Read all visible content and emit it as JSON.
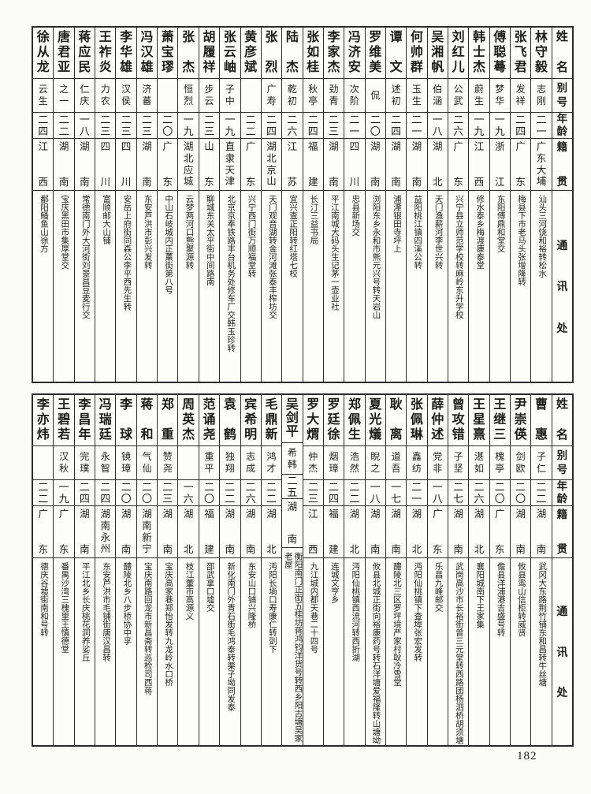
{
  "page_number": "182",
  "colors": {
    "ink": "#1c1c1c",
    "paper": "#fbfbf8",
    "border": "#2b2b2b"
  },
  "header_labels": {
    "name": "姓名",
    "alias": "别号",
    "age": "年龄",
    "native_place": "籍贯",
    "address": "通讯处"
  },
  "tables": [
    {
      "people": [
        {
          "name": "林守毅",
          "alias": "志刚",
          "age": "二一",
          "native": "广东大埔",
          "address": "汕头三河饶和裕转松水"
        },
        {
          "name": "张飞君",
          "alias": "发祥",
          "age": "二四",
          "native": "广东",
          "address": "梅县下市老马头张增隆转"
        },
        {
          "name": "傅聪蕚",
          "alias": "梦华",
          "age": "一九",
          "native": "浙江",
          "address": "东阳傅鼎和堂交"
        },
        {
          "name": "韩士杰",
          "alias": "蔚生",
          "age": "一九",
          "native": "江西",
          "address": "修水泰乡梅渡康泰堂"
        },
        {
          "name": "刘红儿",
          "alias": "公武",
          "age": "二六",
          "native": "广东",
          "address": "兴宁县立师范学校转麻岭东升学校"
        },
        {
          "name": "吴湘帆",
          "alias": "伯涵",
          "age": "一八",
          "native": "湖北",
          "address": "天门渔薪河李世兴转"
        },
        {
          "name": "何帅群",
          "alias": "玉生",
          "age": "二一",
          "native": "湖南",
          "address": "益阳桃江镇四溪公转"
        },
        {
          "name": "谭文",
          "alias": "述初",
          "age": "二四",
          "native": "湖南",
          "address": "浦潭银田寺坪上"
        },
        {
          "name": "罗维美",
          "alias": "侃",
          "age": "二〇",
          "native": "湖南",
          "address": "浏阳东乡永和市熊元兴号转天岩山"
        },
        {
          "name": "冯济安",
          "alias": "次阶",
          "age": "二一",
          "native": "四川",
          "address": "忠县新场交"
        },
        {
          "name": "李家杰",
          "alias": "劲青",
          "age": "二三",
          "native": "湖南",
          "address": "平江南城大码头生记茅一壶业社"
        },
        {
          "name": "张如桂",
          "alias": "秋亭",
          "age": "二四",
          "native": "福建",
          "address": "长汀三益书局"
        },
        {
          "name": "陆杰",
          "alias": "乾初",
          "age": "二六",
          "native": "江苏",
          "address": "宜兴查正阳转红塔七校"
        },
        {
          "name": "张烈",
          "alias": "广寿",
          "age": "二四",
          "native": "湖北京山",
          "address": "天门观音湖转金河滩张泰丰榨坊交"
        },
        {
          "name": "黄彦斌",
          "alias": "",
          "age": "二二",
          "native": "广东",
          "address": "兴宁西门街万顺福堂转"
        },
        {
          "name": "张云岫",
          "alias": "子中",
          "age": "一九",
          "native": "直隶天津",
          "address": "北京京奉铁路丰台机务处修车厂交韩玉珍转"
        },
        {
          "name": "胡履祥",
          "alias": "步云",
          "age": "二三",
          "native": "山东",
          "address": "聊城东关太平街中间路南"
        },
        {
          "name": "张杰",
          "alias": "恒烈",
          "age": "一九",
          "native": "湖北应城",
          "address": "云梦两河口熊聚源转"
        },
        {
          "name": "萧宝璆",
          "alias": "",
          "age": "二〇",
          "native": "广东",
          "address": "中山石岐城内正薰街第八号"
        },
        {
          "name": "冯汉雄",
          "alias": "济蕃",
          "age": "二三",
          "native": "湖南",
          "address": "东安芦洪市彭兴发转"
        },
        {
          "name": "李华雄",
          "alias": "汉侯",
          "age": "二三",
          "native": "四川",
          "address": "安岳上府街同森公李平西先生转"
        },
        {
          "name": "王祚炎",
          "alias": "力农",
          "age": "二三",
          "native": "四川",
          "address": "富顺邮大山铺"
        },
        {
          "name": "蒋应民",
          "alias": "仁庆",
          "age": "一八",
          "native": "湖南",
          "address": "常德南门外大河街刘景昌豆麦行交"
        },
        {
          "name": "唐君亚",
          "alias": "之一",
          "age": "二二",
          "native": "湖南",
          "address": "宝庆黑田市集厚堂交"
        },
        {
          "name": "徐从龙",
          "alias": "云生",
          "age": "二四",
          "native": "江西",
          "address": "鄱阳鳋鱼山徐方"
        }
      ]
    },
    {
      "people": [
        {
          "name": "曹惠",
          "alias": "子仁",
          "age": "二二",
          "native": "湖南",
          "address": "武冈大东路荆竹铺东和昌转牛丝塘"
        },
        {
          "name": "尹崇偀",
          "alias": "剑欧",
          "age": "二〇",
          "native": "湖南",
          "address": "攸县鸾山信柜转威贤"
        },
        {
          "name": "王继三",
          "alias": "槐亭",
          "age": "二〇",
          "native": "广东",
          "address": "儋县洋浦港吉盛号转"
        },
        {
          "name": "王星熹",
          "alias": "湛如",
          "age": "二六",
          "native": "湖北",
          "address": "襄阳城南下王家集"
        },
        {
          "name": "曾攻错",
          "alias": "子坚",
          "age": "二七",
          "native": "湖南",
          "address": "武岗高沙市长裕街曾三元堂转西路团杨泗桥胡须塘"
        },
        {
          "name": "薛仲述",
          "alias": "党非",
          "age": "一八",
          "native": "广东",
          "address": "乐昌九峰邮交"
        },
        {
          "name": "张佩琳",
          "alias": "鑫纺",
          "age": "二一",
          "native": "湖北",
          "address": "沔阳仙桃镇下查埠张宏发转"
        },
        {
          "name": "耿离",
          "alias": "道吾",
          "age": "一七",
          "native": "湖南",
          "address": "醴陵北三区罗坪境严家村耿冷雪堂"
        },
        {
          "name": "夏光燨",
          "alias": "睨之",
          "age": "一八",
          "native": "湖南",
          "address": "攸县北城正街向裕康药号转石洋塘爱福隆转山塘坳"
        },
        {
          "name": "郑佩生",
          "alias": "浩然",
          "age": "二二",
          "native": "湖北",
          "address": "沔阳仙桃镇西流河转西折湖"
        },
        {
          "name": "罗廷徐",
          "alias": "烟璋",
          "age": "二四",
          "native": "福建",
          "address": "连城文亨乡"
        },
        {
          "name": "罗大煟",
          "alias": "仲杰",
          "age": "二三",
          "native": "江西",
          "address": "九江城内都天巷二十四号"
        },
        {
          "name": "吴剑平",
          "alias": "希韩",
          "age": "二五",
          "native": "湖南",
          "address": "衡阳南门正街五桂坊蒋鸿钧洋货号转西乡阳古塘吴家老屋"
        },
        {
          "name": "毛鼎新",
          "alias": "鸿才",
          "age": "二二",
          "native": "湖北",
          "address": "沔阳长埫口寿康仁转剅下"
        },
        {
          "name": "宾希明",
          "alias": "志成",
          "age": "二六",
          "native": "湖南",
          "address": "东安山口铺兴隆桥"
        },
        {
          "name": "袁鹤",
          "alias": "独翔",
          "age": "二二",
          "native": "湖南",
          "address": "新化南门外青石街毛鸿泰转栗子坳同发泰"
        },
        {
          "name": "范诵尧",
          "alias": "重平",
          "age": "二〇",
          "native": "福建",
          "address": "邵武拿口墟交"
        },
        {
          "name": "周英杰",
          "alias": "",
          "age": "一六",
          "native": "湖北",
          "address": "枝江董市高源义"
        },
        {
          "name": "郑重",
          "alias": "赞尧",
          "age": "二三",
          "native": "湖南",
          "address": "宝庆高家巷郑怡发转九龙岭水口桥"
        },
        {
          "name": "蒋和",
          "alias": "气仙",
          "age": "二〇",
          "native": "湖南新宁",
          "address": "宝庆南路回龙市新昌斋转巡检司西蒋"
        },
        {
          "name": "李球",
          "alias": "镜璋",
          "age": "二〇",
          "native": "湖南",
          "address": "醴陵北乡八步桥协中孚"
        },
        {
          "name": "冯瑞廷",
          "alias": "永智",
          "age": "二四",
          "native": "湖南永州",
          "address": "东安芦洪市毛铺街唐汉昌转"
        },
        {
          "name": "李昌年",
          "alias": "完璞",
          "age": "二四",
          "native": "湖南",
          "address": "平江北乡长庆桃花洞养娑丘"
        },
        {
          "name": "王碧若",
          "alias": "汉秋",
          "age": "一九",
          "native": "广东",
          "address": "番禺沙湾三槐里王慎德堂"
        },
        {
          "name": "李亦炜",
          "alias": "",
          "age": "二二",
          "native": "广东",
          "address": "德庆谷墟街南和号转"
        }
      ]
    }
  ]
}
